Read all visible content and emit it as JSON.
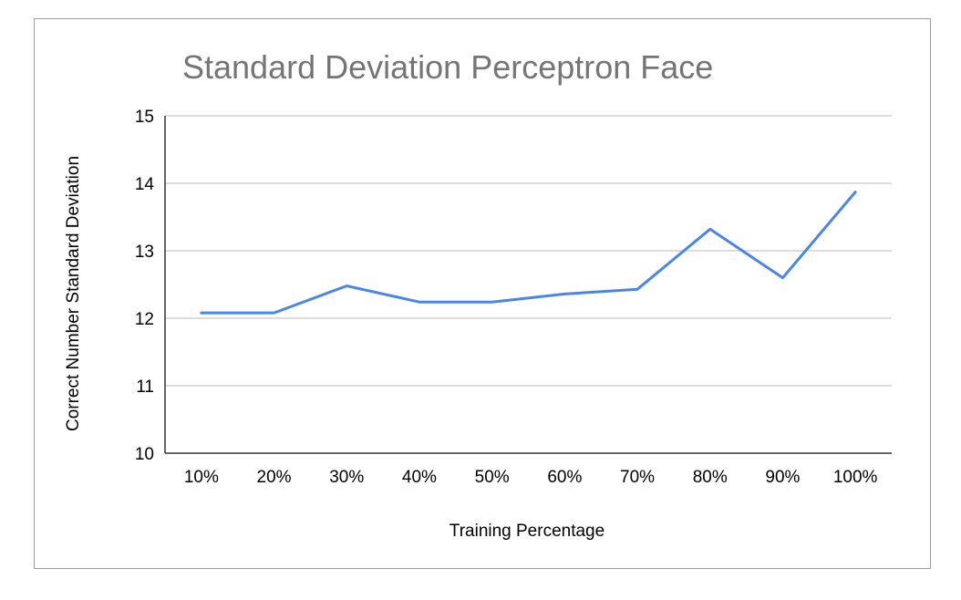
{
  "chart_data": {
    "type": "line",
    "title": "Standard Deviation Perceptron Face",
    "xlabel": "Training Percentage",
    "ylabel": "Correct Number Standard Deviation",
    "categories": [
      "10%",
      "20%",
      "30%",
      "40%",
      "50%",
      "60%",
      "70%",
      "80%",
      "90%",
      "100%"
    ],
    "series": [
      {
        "values": [
          12.08,
          12.08,
          12.48,
          12.24,
          12.24,
          12.36,
          12.43,
          13.32,
          12.6,
          13.87
        ],
        "color": "#4a86e8"
      }
    ],
    "ylim": [
      10,
      15
    ],
    "yticks": [
      10,
      11,
      12,
      13,
      14,
      15
    ],
    "grid": true,
    "legend": "none"
  }
}
